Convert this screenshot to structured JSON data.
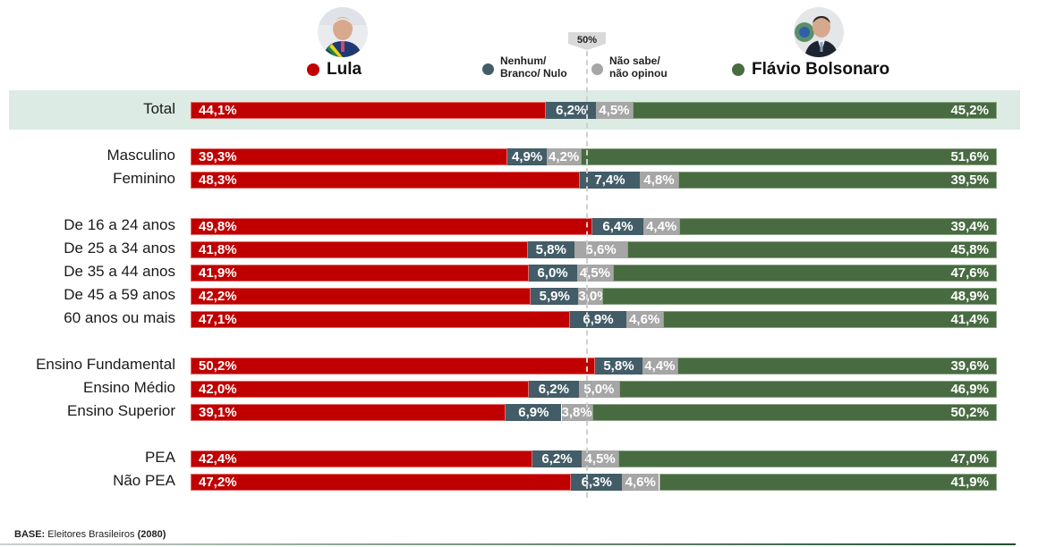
{
  "legend": {
    "lula": {
      "label": "Lula",
      "color": "#c00000",
      "icon": "lula-photo-avatar"
    },
    "nulo": {
      "line1": "Nenhum/",
      "line2": "Branco/ Nulo",
      "color": "#435d68"
    },
    "nsabe": {
      "line1": "Não sabe/",
      "line2": "não opinou",
      "color": "#a6a6a6"
    },
    "flavio": {
      "label": "Flávio Bolsonaro",
      "color": "#486b42",
      "icon": "flavio-photo-avatar"
    },
    "midline_label": "50%"
  },
  "footer": {
    "base_label": "BASE:",
    "base_text": " Eleitores Brasileiros ",
    "base_n": "(2080)"
  },
  "chart_data": {
    "type": "bar",
    "orientation": "horizontal",
    "stacked": true,
    "normalized_to": 100,
    "reference_line": 50,
    "categories": [
      "Total",
      "Masculino",
      "Feminino",
      "De 16 a 24 anos",
      "De 25 a 34 anos",
      "De 35 a 44 anos",
      "De 45 a 59 anos",
      "60 anos ou mais",
      "Ensino Fundamental",
      "Ensino Médio",
      "Ensino Superior",
      "PEA",
      "Não PEA"
    ],
    "groups": [
      [
        0
      ],
      [
        1,
        2
      ],
      [
        3,
        4,
        5,
        6,
        7
      ],
      [
        8,
        9,
        10
      ],
      [
        11,
        12
      ]
    ],
    "highlighted_category": "Total",
    "series": [
      {
        "name": "Lula",
        "key": "lula",
        "values": [
          44.1,
          39.3,
          48.3,
          49.8,
          41.8,
          41.9,
          42.2,
          47.1,
          50.2,
          42.0,
          39.1,
          42.4,
          47.2
        ],
        "labels": [
          "44,1%",
          "39,3%",
          "48,3%",
          "49,8%",
          "41,8%",
          "41,9%",
          "42,2%",
          "47,1%",
          "50,2%",
          "42,0%",
          "39,1%",
          "42,4%",
          "47,2%"
        ]
      },
      {
        "name": "Nenhum/ Branco/ Nulo",
        "key": "nulo",
        "values": [
          6.2,
          4.9,
          7.4,
          6.4,
          5.8,
          6.0,
          5.9,
          6.9,
          5.8,
          6.2,
          6.9,
          6.2,
          6.3
        ],
        "labels": [
          "6,2%",
          "4,9%",
          "7,4%",
          "6,4%",
          "5,8%",
          "6,0%",
          "5,9%",
          "6,9%",
          "5,8%",
          "6,2%",
          "6,9%",
          "6,2%",
          "6,3%"
        ]
      },
      {
        "name": "Não sabe/ não opinou",
        "key": "nsabe",
        "values": [
          4.5,
          4.2,
          4.8,
          4.4,
          6.6,
          4.5,
          3.0,
          4.6,
          4.4,
          5.0,
          3.8,
          4.5,
          4.6
        ],
        "labels": [
          "4,5%",
          "4,2%",
          "4,8%",
          "4,4%",
          "6,6%",
          "4,5%",
          "3,0%",
          "4,6%",
          "4,4%",
          "5,0%",
          "3,8%",
          "4,5%",
          "4,6%"
        ]
      },
      {
        "name": "Flávio Bolsonaro",
        "key": "flavio",
        "values": [
          45.2,
          51.6,
          39.5,
          39.4,
          45.8,
          47.6,
          48.9,
          41.4,
          39.6,
          46.9,
          50.2,
          47.0,
          41.9
        ],
        "labels": [
          "45,2%",
          "51,6%",
          "39,5%",
          "39,4%",
          "45,8%",
          "47,6%",
          "48,9%",
          "41,4%",
          "39,6%",
          "46,9%",
          "50,2%",
          "47,0%",
          "41,9%"
        ]
      }
    ],
    "title": "",
    "xlabel": "",
    "ylabel": "",
    "xlim": [
      0,
      100
    ],
    "grid": false,
    "legend_position": "top"
  }
}
